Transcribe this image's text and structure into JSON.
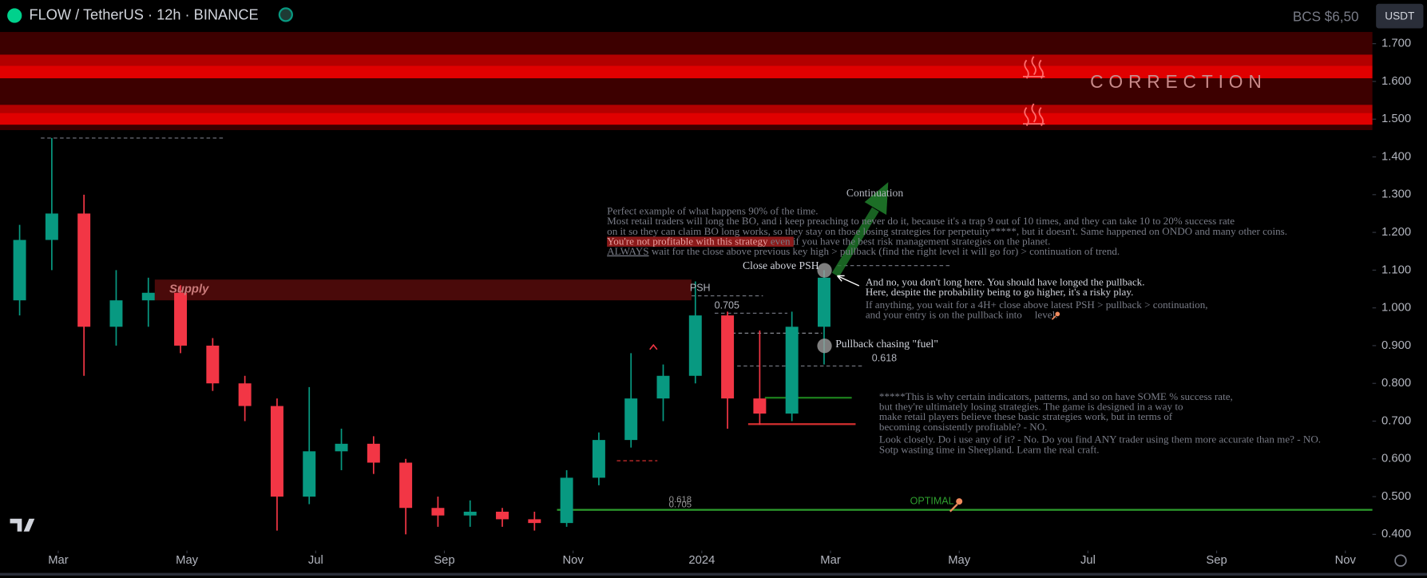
{
  "chart_data": {
    "type": "candlestick",
    "title": "FLOW / TetherUS · 12h · BINANCE",
    "header_price": "BCS $6,50",
    "currency": "USDT",
    "zone_label": "CORRECTION",
    "up_color": "#089981",
    "down_color": "#f23645",
    "xlim": [
      -0.905,
      20.42
    ],
    "ylim": [
      0.357,
      1.731
    ],
    "xticks": [
      {
        "value": 0,
        "label": "Mar"
      },
      {
        "value": 2,
        "label": "May"
      },
      {
        "value": 4,
        "label": "Jul"
      },
      {
        "value": 6,
        "label": "Sep"
      },
      {
        "value": 8,
        "label": "Nov"
      },
      {
        "value": 10,
        "label": "2024"
      },
      {
        "value": 12,
        "label": "Mar"
      },
      {
        "value": 14,
        "label": "May"
      },
      {
        "value": 16,
        "label": "Jul"
      },
      {
        "value": 18,
        "label": "Sep"
      },
      {
        "value": 20,
        "label": "Nov"
      }
    ],
    "yticks": [
      {
        "value": 1.7,
        "label": "1.700"
      },
      {
        "value": 1.6,
        "label": "1.600"
      },
      {
        "value": 1.5,
        "label": "1.500"
      },
      {
        "value": 1.4,
        "label": "1.400"
      },
      {
        "value": 1.3,
        "label": "1.300"
      },
      {
        "value": 1.2,
        "label": "1.200"
      },
      {
        "value": 1.1,
        "label": "1.100"
      },
      {
        "value": 1.0,
        "label": "1.000"
      },
      {
        "value": 0.9,
        "label": "0.900"
      },
      {
        "value": 0.8,
        "label": "0.800"
      },
      {
        "value": 0.7,
        "label": "0.700"
      },
      {
        "value": 0.6,
        "label": "0.600"
      },
      {
        "value": 0.5,
        "label": "0.500"
      },
      {
        "value": 0.4,
        "label": "0.400"
      }
    ],
    "x": [
      -0.6,
      -0.1,
      0.4,
      0.9,
      1.4,
      1.9,
      2.4,
      2.9,
      3.4,
      3.9,
      4.4,
      4.9,
      5.4,
      5.9,
      6.4,
      6.9,
      7.4,
      7.9,
      8.4,
      8.9,
      9.4,
      9.9,
      10.4,
      10.9,
      11.4,
      11.9
    ],
    "open": [
      1.02,
      1.18,
      1.25,
      0.95,
      1.02,
      1.04,
      0.9,
      0.8,
      0.74,
      0.5,
      0.62,
      0.64,
      0.59,
      0.47,
      0.45,
      0.46,
      0.44,
      0.43,
      0.55,
      0.65,
      0.76,
      0.82,
      0.98,
      0.76,
      0.72,
      0.95
    ],
    "high": [
      1.22,
      1.45,
      1.3,
      1.1,
      1.08,
      1.06,
      0.92,
      0.82,
      0.76,
      0.79,
      0.68,
      0.66,
      0.6,
      0.5,
      0.49,
      0.47,
      0.46,
      0.57,
      0.67,
      0.88,
      0.85,
      1.07,
      0.99,
      0.94,
      0.99,
      1.1
    ],
    "low": [
      0.98,
      1.1,
      0.82,
      0.9,
      0.95,
      0.88,
      0.78,
      0.7,
      0.41,
      0.48,
      0.57,
      0.56,
      0.4,
      0.42,
      0.42,
      0.42,
      0.41,
      0.42,
      0.53,
      0.63,
      0.7,
      0.8,
      0.68,
      0.69,
      0.7,
      0.85
    ],
    "close": [
      1.18,
      1.25,
      0.95,
      1.02,
      1.04,
      0.9,
      0.8,
      0.74,
      0.5,
      0.62,
      0.64,
      0.59,
      0.47,
      0.45,
      0.46,
      0.44,
      0.43,
      0.55,
      0.65,
      0.76,
      0.82,
      0.98,
      0.76,
      0.72,
      0.95,
      1.08
    ],
    "zones": [
      {
        "range": [
          1.671,
          1.731
        ],
        "color": "#3d0000"
      },
      {
        "range": [
          1.642,
          1.671
        ],
        "color": "#b30000"
      },
      {
        "range": [
          1.608,
          1.642
        ],
        "color": "#e00000"
      },
      {
        "range": [
          1.538,
          1.608
        ],
        "color": "#3d0000"
      },
      {
        "range": [
          1.517,
          1.538
        ],
        "color": "#b30000"
      },
      {
        "range": [
          1.485,
          1.517
        ],
        "color": "#e00000"
      },
      {
        "range": [
          1.471,
          1.485
        ],
        "color": "#3d0000"
      }
    ],
    "supply": {
      "label": "Supply",
      "range": [
        1.02,
        1.075
      ],
      "x": [
        1.5,
        9.84
      ],
      "color": "#4a0a0a"
    },
    "levels": [
      {
        "value": 1.45,
        "x": [
          -0.27,
          2.56
        ],
        "color": "#787b86",
        "dash": true
      },
      {
        "value": 1.032,
        "x": [
          9.84,
          10.95
        ],
        "color": "#787b86",
        "dash": true
      },
      {
        "value": 0.986,
        "x": [
          10.2,
          11.33
        ],
        "color": "#787b86",
        "dash": true
      },
      {
        "value": 0.933,
        "x": [
          10.37,
          11.87
        ],
        "color": "#9598a1",
        "dash": true
      },
      {
        "value": 0.846,
        "x": [
          10.55,
          12.53
        ],
        "color": "#787b86",
        "dash": true
      },
      {
        "value": 0.762,
        "x": [
          10.98,
          12.33
        ],
        "color": "#1b7a1b",
        "dash": false
      },
      {
        "value": 0.692,
        "x": [
          10.72,
          12.39
        ],
        "color": "#d32f2f",
        "dash": false
      },
      {
        "value": 0.595,
        "x": [
          8.68,
          9.31
        ],
        "color": "#d32f2f",
        "dash": true
      },
      {
        "value": 1.112,
        "x": [
          12.11,
          13.88
        ],
        "color": "#787b86",
        "dash": true
      },
      {
        "value": 0.465,
        "x": [
          7.75,
          20.42
        ],
        "color": "#2e9e2e",
        "dash": false
      }
    ],
    "annotations": {
      "psh": "PSH",
      "fib_705": "0.705",
      "fib_618": "0.618",
      "optimal_618": "0.618",
      "optimal_705": "0.705",
      "optimal": "OPTIMAL",
      "continuation": "Continuation",
      "close_above": "Close above PSH",
      "pullback": "Pullback chasing \"fuel\""
    },
    "notes": {
      "main": [
        "Perfect example of what happens 90% of the time.",
        "Most retail traders will long the BO, and i keep preaching to never do it, because it's a trap 9 out of 10 times, and they can take 10 to 20% success rate",
        "on it so they can claim BO long works, so they stay on those losing strategies for perpetuity*****, but it doesn't. Same happened on ONDO and many other coins.",
        [
          "You're not profitable with this strategy",
          " even if you have the best risk management strategies on the planet."
        ],
        [
          "ALWAYS",
          " wait for the close above previous key high > pullback (find the right level it will go for) > continuation of trend."
        ]
      ],
      "risk": [
        "And no, you don't long here. You should have longed the pullback.",
        "Here, despite the probability being to go higher, it's a risky play.",
        "If anything, you wait for a 4H+ close above latest PSH > pullback > continuation,",
        [
          "and your entry is on the pullback into",
          "level."
        ]
      ],
      "footer": [
        "*****This is why certain indicators, patterns, and so on have SOME % success rate,",
        "but they're ultimately losing strategies. The game is designed in a way to",
        "make retail players believe these basic strategies work, but in terms of",
        "becoming consistently profitable? - NO.",
        "Look closely. Do i use any of it? - No. Do you find ANY trader using them more accurate than me? - NO.",
        "Sotp wasting time in Sheepland. Learn the real craft."
      ]
    }
  }
}
